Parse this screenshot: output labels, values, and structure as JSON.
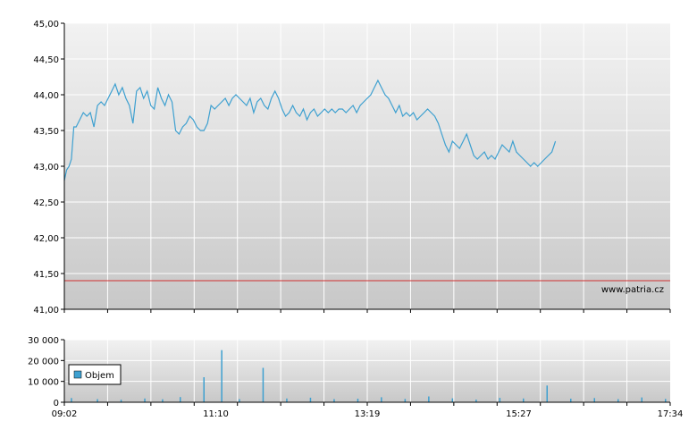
{
  "watermark": "www.patria.cz",
  "colors": {
    "price_line": "#3ea0d0",
    "reference_line": "#d03030",
    "volume_bar": "#3ea0d0",
    "legend_swatch": "#3ea0d0",
    "plot_bg_top": "#f2f2f2",
    "plot_bg_bottom": "#c8c8c8",
    "grid": "#ffffff",
    "axis": "#000000"
  },
  "legend": {
    "label": "Objem"
  },
  "chart_data": [
    {
      "type": "line",
      "name": "price",
      "y_tick_labels": [
        "45,00",
        "44,50",
        "44,00",
        "43,50",
        "43,00",
        "42,50",
        "42,00",
        "41,50",
        "41,00"
      ],
      "ylim": [
        41.0,
        45.0
      ],
      "xlim": [
        "09:02",
        "17:34"
      ],
      "grid": true,
      "reference_value": 41.4,
      "points": [
        [
          "09:02",
          42.8
        ],
        [
          "09:04",
          42.95
        ],
        [
          "09:06",
          43.0
        ],
        [
          "09:08",
          43.1
        ],
        [
          "09:10",
          43.55
        ],
        [
          "09:12",
          43.55
        ],
        [
          "09:15",
          43.65
        ],
        [
          "09:18",
          43.75
        ],
        [
          "09:21",
          43.7
        ],
        [
          "09:24",
          43.75
        ],
        [
          "09:27",
          43.55
        ],
        [
          "09:30",
          43.85
        ],
        [
          "09:33",
          43.9
        ],
        [
          "09:36",
          43.85
        ],
        [
          "09:39",
          43.95
        ],
        [
          "09:42",
          44.05
        ],
        [
          "09:45",
          44.15
        ],
        [
          "09:48",
          44.0
        ],
        [
          "09:51",
          44.1
        ],
        [
          "09:54",
          43.95
        ],
        [
          "09:57",
          43.85
        ],
        [
          "10:00",
          43.6
        ],
        [
          "10:03",
          44.05
        ],
        [
          "10:06",
          44.1
        ],
        [
          "10:09",
          43.95
        ],
        [
          "10:12",
          44.05
        ],
        [
          "10:15",
          43.85
        ],
        [
          "10:18",
          43.8
        ],
        [
          "10:21",
          44.1
        ],
        [
          "10:24",
          43.95
        ],
        [
          "10:27",
          43.85
        ],
        [
          "10:30",
          44.0
        ],
        [
          "10:33",
          43.9
        ],
        [
          "10:36",
          43.5
        ],
        [
          "10:39",
          43.45
        ],
        [
          "10:42",
          43.55
        ],
        [
          "10:45",
          43.6
        ],
        [
          "10:48",
          43.7
        ],
        [
          "10:51",
          43.65
        ],
        [
          "10:54",
          43.55
        ],
        [
          "10:57",
          43.5
        ],
        [
          "11:00",
          43.5
        ],
        [
          "11:03",
          43.6
        ],
        [
          "11:06",
          43.85
        ],
        [
          "11:09",
          43.8
        ],
        [
          "11:12",
          43.85
        ],
        [
          "11:15",
          43.9
        ],
        [
          "11:18",
          43.95
        ],
        [
          "11:21",
          43.85
        ],
        [
          "11:24",
          43.95
        ],
        [
          "11:27",
          44.0
        ],
        [
          "11:30",
          43.95
        ],
        [
          "11:33",
          43.9
        ],
        [
          "11:36",
          43.85
        ],
        [
          "11:39",
          43.95
        ],
        [
          "11:42",
          43.75
        ],
        [
          "11:45",
          43.9
        ],
        [
          "11:48",
          43.95
        ],
        [
          "11:51",
          43.85
        ],
        [
          "11:54",
          43.8
        ],
        [
          "11:57",
          43.95
        ],
        [
          "12:00",
          44.05
        ],
        [
          "12:03",
          43.95
        ],
        [
          "12:06",
          43.8
        ],
        [
          "12:09",
          43.7
        ],
        [
          "12:12",
          43.75
        ],
        [
          "12:15",
          43.85
        ],
        [
          "12:18",
          43.75
        ],
        [
          "12:21",
          43.7
        ],
        [
          "12:24",
          43.8
        ],
        [
          "12:27",
          43.65
        ],
        [
          "12:30",
          43.75
        ],
        [
          "12:33",
          43.8
        ],
        [
          "12:36",
          43.7
        ],
        [
          "12:39",
          43.75
        ],
        [
          "12:42",
          43.8
        ],
        [
          "12:45",
          43.75
        ],
        [
          "12:48",
          43.8
        ],
        [
          "12:51",
          43.75
        ],
        [
          "12:54",
          43.8
        ],
        [
          "12:57",
          43.8
        ],
        [
          "13:00",
          43.75
        ],
        [
          "13:03",
          43.8
        ],
        [
          "13:06",
          43.85
        ],
        [
          "13:09",
          43.75
        ],
        [
          "13:12",
          43.85
        ],
        [
          "13:15",
          43.9
        ],
        [
          "13:18",
          43.95
        ],
        [
          "13:21",
          44.0
        ],
        [
          "13:24",
          44.1
        ],
        [
          "13:27",
          44.2
        ],
        [
          "13:30",
          44.1
        ],
        [
          "13:33",
          44.0
        ],
        [
          "13:36",
          43.95
        ],
        [
          "13:39",
          43.85
        ],
        [
          "13:42",
          43.75
        ],
        [
          "13:45",
          43.85
        ],
        [
          "13:48",
          43.7
        ],
        [
          "13:51",
          43.75
        ],
        [
          "13:54",
          43.7
        ],
        [
          "13:57",
          43.75
        ],
        [
          "14:00",
          43.65
        ],
        [
          "14:03",
          43.7
        ],
        [
          "14:06",
          43.75
        ],
        [
          "14:09",
          43.8
        ],
        [
          "14:12",
          43.75
        ],
        [
          "14:15",
          43.7
        ],
        [
          "14:18",
          43.6
        ],
        [
          "14:21",
          43.45
        ],
        [
          "14:24",
          43.3
        ],
        [
          "14:27",
          43.2
        ],
        [
          "14:30",
          43.35
        ],
        [
          "14:33",
          43.3
        ],
        [
          "14:36",
          43.25
        ],
        [
          "14:39",
          43.35
        ],
        [
          "14:42",
          43.45
        ],
        [
          "14:45",
          43.3
        ],
        [
          "14:48",
          43.15
        ],
        [
          "14:51",
          43.1
        ],
        [
          "14:54",
          43.15
        ],
        [
          "14:57",
          43.2
        ],
        [
          "15:00",
          43.1
        ],
        [
          "15:03",
          43.15
        ],
        [
          "15:06",
          43.1
        ],
        [
          "15:09",
          43.2
        ],
        [
          "15:12",
          43.3
        ],
        [
          "15:15",
          43.25
        ],
        [
          "15:18",
          43.2
        ],
        [
          "15:21",
          43.35
        ],
        [
          "15:24",
          43.2
        ],
        [
          "15:27",
          43.15
        ],
        [
          "15:30",
          43.1
        ],
        [
          "15:33",
          43.05
        ],
        [
          "15:36",
          43.0
        ],
        [
          "15:39",
          43.05
        ],
        [
          "15:42",
          43.0
        ],
        [
          "15:45",
          43.05
        ],
        [
          "15:48",
          43.1
        ],
        [
          "15:51",
          43.15
        ],
        [
          "15:54",
          43.2
        ],
        [
          "15:57",
          43.35
        ]
      ]
    },
    {
      "type": "bar",
      "name": "Objem",
      "y_tick_labels": [
        "30 000",
        "20 000",
        "10 000",
        "0"
      ],
      "ylim": [
        0,
        30000
      ],
      "x_tick_labels": [
        "09:02",
        "11:10",
        "13:19",
        "15:27",
        "17:34"
      ],
      "grid": true,
      "legend_position": "left",
      "bars": [
        [
          "09:08",
          2000
        ],
        [
          "09:30",
          1500
        ],
        [
          "09:50",
          1200
        ],
        [
          "10:10",
          1800
        ],
        [
          "10:25",
          1400
        ],
        [
          "10:40",
          2500
        ],
        [
          "11:00",
          12000
        ],
        [
          "11:15",
          25000
        ],
        [
          "11:30",
          1500
        ],
        [
          "11:50",
          16500
        ],
        [
          "12:10",
          1800
        ],
        [
          "12:30",
          2200
        ],
        [
          "12:50",
          1500
        ],
        [
          "13:10",
          1700
        ],
        [
          "13:30",
          2400
        ],
        [
          "13:50",
          1600
        ],
        [
          "14:10",
          2800
        ],
        [
          "14:30",
          1900
        ],
        [
          "14:50",
          1300
        ],
        [
          "15:10",
          2100
        ],
        [
          "15:30",
          1800
        ],
        [
          "15:50",
          8000
        ],
        [
          "16:10",
          1700
        ],
        [
          "16:30",
          2000
        ],
        [
          "16:50",
          1500
        ],
        [
          "17:10",
          2300
        ],
        [
          "17:30",
          1600
        ]
      ]
    }
  ]
}
